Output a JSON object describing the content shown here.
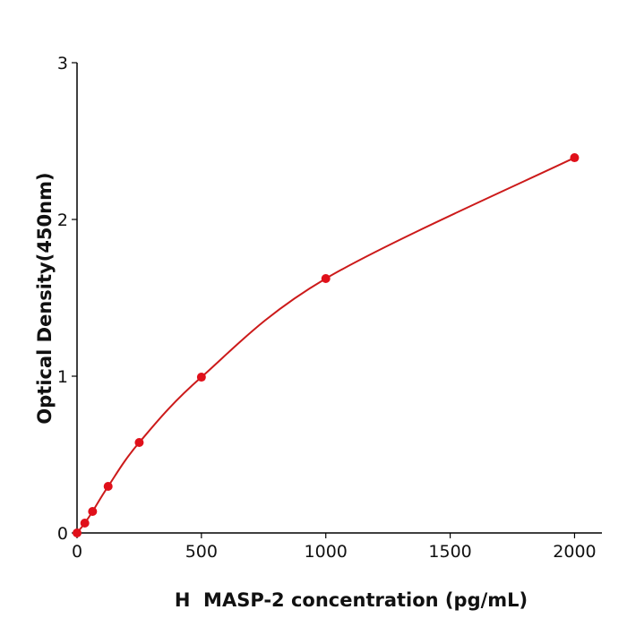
{
  "chart_data": {
    "type": "scatter",
    "x_label": "H  MASP-2 concentration (pg/mL)",
    "y_label": "Optical Density(450nm)",
    "series": [
      {
        "color": "#e0101a",
        "x": [
          0,
          31.25,
          62.5,
          125,
          250,
          500,
          1000,
          2000
        ],
        "values": [
          0,
          0.063,
          0.137,
          0.297,
          0.577,
          0.994,
          1.623,
          2.394
        ]
      }
    ],
    "line_color": "#cc1a1a",
    "xlim": [
      0,
      2110
    ],
    "xticks": [
      0,
      500,
      1000,
      1500,
      2000
    ],
    "ylim": [
      0,
      3
    ],
    "yticks": [
      0,
      1,
      2,
      3
    ]
  }
}
